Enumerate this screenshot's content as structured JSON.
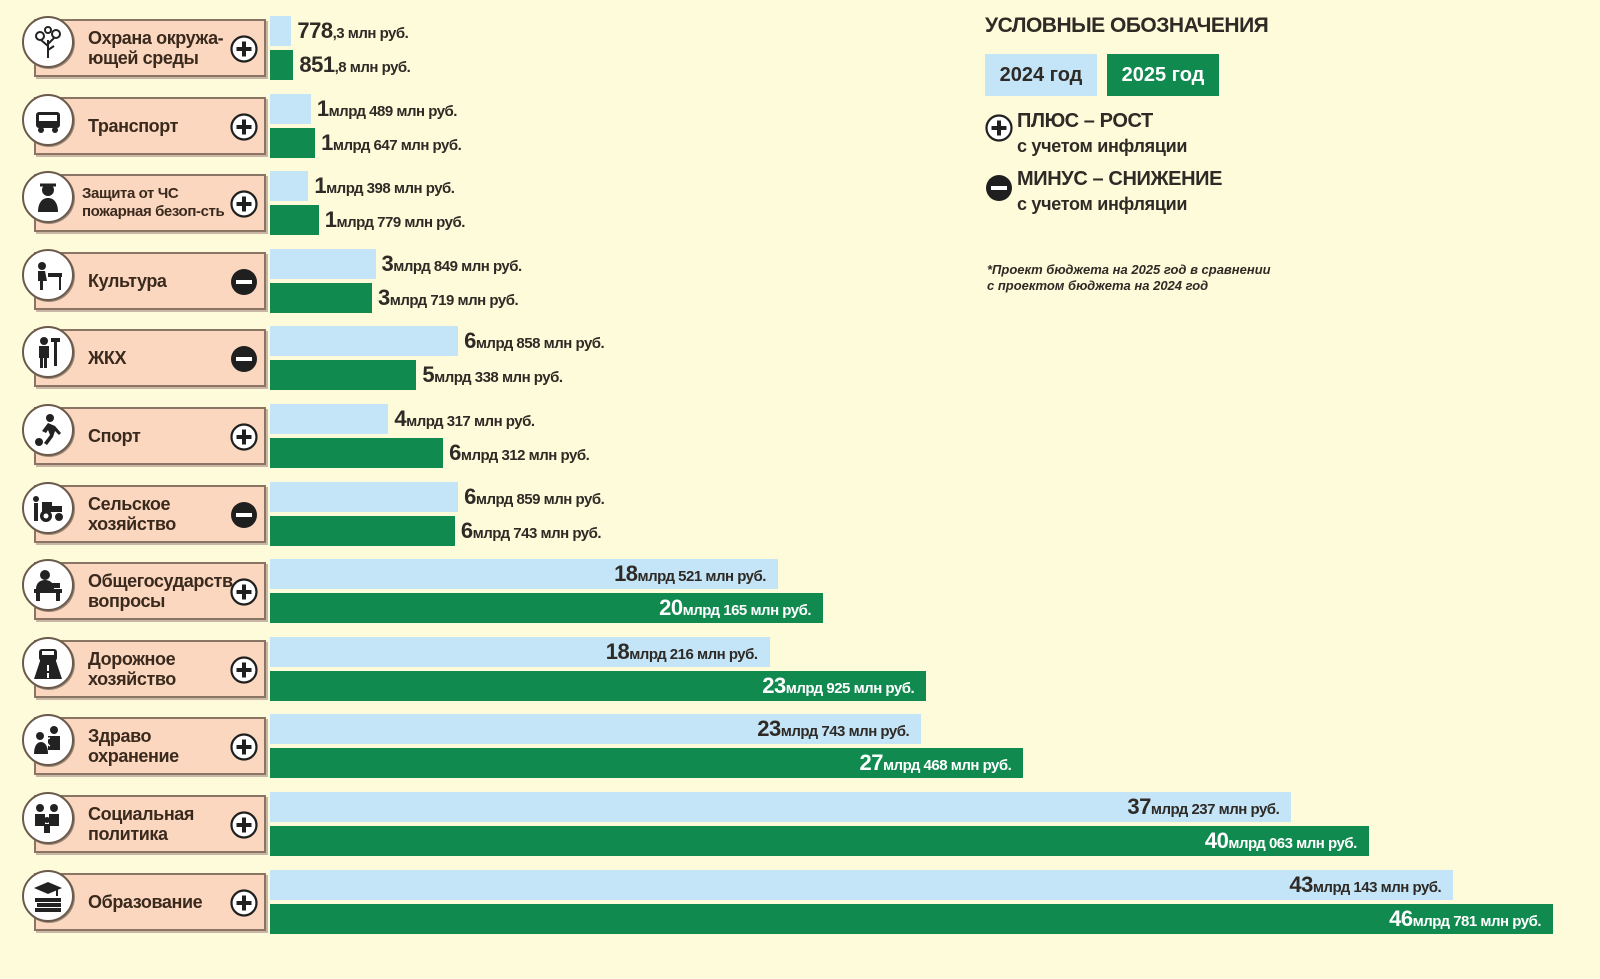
{
  "legend": {
    "title": "УСЛОВНЫЕ ОБОЗНАЧЕНИЯ",
    "year_2024": "2024 год",
    "year_2025": "2025 год",
    "plus_line1": "ПЛЮС – РОСТ",
    "plus_line2": "с учетом инфляции",
    "minus_line1": "МИНУС – СНИЖЕНИЕ",
    "minus_line2": "с учетом инфляции",
    "footnote": "*Проект бюджета на 2025 год в сравнении\nс проектом бюджета на 2024 год"
  },
  "colors": {
    "bar_2024": "#c4e4f7",
    "bar_2025": "#108a4f",
    "label_bg": "#fbd7bf",
    "background": "#fdfbda"
  },
  "chart_data": {
    "type": "bar",
    "orientation": "horizontal",
    "unit": "млн руб.",
    "series": [
      {
        "name": "2024 год",
        "values": [
          778.3,
          1489,
          1398,
          3849,
          6858,
          4317,
          6859,
          18521,
          18216,
          23743,
          37237,
          43143
        ]
      },
      {
        "name": "2025 год",
        "values": [
          851.8,
          1647,
          1779,
          3719,
          5338,
          6312,
          6743,
          20165,
          23925,
          27468,
          40063,
          46781
        ]
      }
    ],
    "categories": [
      {
        "label": "Охрана окружа-\nющей среды",
        "sign": "plus",
        "icon": "tree-icon",
        "small": false,
        "v2024": [
          "778",
          ",3 млн руб."
        ],
        "v2025": [
          "851",
          ",8 млн руб."
        ]
      },
      {
        "label": "Транспорт",
        "sign": "plus",
        "icon": "bus-icon",
        "small": false,
        "v2024": [
          "1",
          " млрд 489 млн руб."
        ],
        "v2025": [
          "1",
          " млрд 647 млн руб."
        ]
      },
      {
        "label": "Защита от ЧС\nпожарная безоп-сть",
        "sign": "plus",
        "icon": "firefighter-icon",
        "small": true,
        "v2024": [
          "1",
          " млрд  398 млн руб."
        ],
        "v2025": [
          "1",
          " млрд  779 млн руб."
        ]
      },
      {
        "label": "Культура",
        "sign": "minus",
        "icon": "piano-icon",
        "small": false,
        "v2024": [
          "3",
          " млрд 849 млн руб."
        ],
        "v2025": [
          "3",
          " млрд 719 млн руб."
        ]
      },
      {
        "label": "ЖКХ",
        "sign": "minus",
        "icon": "plumber-icon",
        "small": false,
        "v2024": [
          "6",
          " млрд 858 млн руб."
        ],
        "v2025": [
          "5",
          " млрд 338 млн руб."
        ]
      },
      {
        "label": "Спорт",
        "sign": "plus",
        "icon": "football-player-icon",
        "small": false,
        "v2024": [
          "4",
          " млрд  317 млн руб."
        ],
        "v2025": [
          "6",
          " млрд  312 млн руб."
        ]
      },
      {
        "label": "Сельское\nхозяйство",
        "sign": "minus",
        "icon": "tractor-icon",
        "small": false,
        "v2024": [
          "6",
          " млрд  859 млн руб."
        ],
        "v2025": [
          "6",
          " млрд  743 млн руб."
        ]
      },
      {
        "label": "Общегосударств.\nвопросы",
        "sign": "plus",
        "icon": "official-desk-icon",
        "small": false,
        "v2024": [
          "18",
          " млрд  521 млн руб."
        ],
        "v2025": [
          "20",
          " млрд  165 млн руб."
        ]
      },
      {
        "label": "Дорожное\nхозяйство",
        "sign": "plus",
        "icon": "road-car-icon",
        "small": false,
        "v2024": [
          "18",
          " млрд  216 млн руб."
        ],
        "v2025": [
          "23",
          " млрд  925 млн руб."
        ]
      },
      {
        "label": "Здраво\nохранение",
        "sign": "plus",
        "icon": "doctor-icon",
        "small": false,
        "v2024": [
          "23",
          " млрд  743 млн руб."
        ],
        "v2025": [
          "27",
          " млрд  468 млн руб."
        ]
      },
      {
        "label": "Социальная\nполитика",
        "sign": "plus",
        "icon": "family-icon",
        "small": false,
        "v2024": [
          "37",
          " млрд  237 млн руб."
        ],
        "v2025": [
          "40",
          " млрд  063 млн руб."
        ]
      },
      {
        "label": "Образование",
        "sign": "plus",
        "icon": "graduation-books-icon",
        "small": false,
        "v2024": [
          "43",
          " млрд  143 млн руб."
        ],
        "v2025": [
          "46",
          " млрд  781 млн руб."
        ]
      }
    ]
  }
}
